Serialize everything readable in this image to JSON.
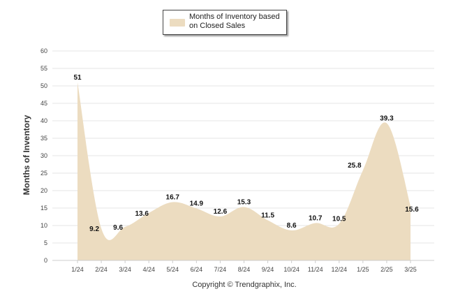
{
  "chart_data": {
    "type": "area",
    "categories": [
      "1/24",
      "2/24",
      "3/24",
      "4/24",
      "5/24",
      "6/24",
      "7/24",
      "8/24",
      "9/24",
      "10/24",
      "11/24",
      "12/24",
      "1/25",
      "2/25",
      "3/25"
    ],
    "series": [
      {
        "name": "Months of Inventory based on Closed Sales",
        "values": [
          51,
          9.2,
          9.6,
          13.6,
          16.7,
          14.9,
          12.6,
          15.3,
          11.5,
          8.6,
          10.7,
          10.5,
          25.8,
          39.3,
          15.6
        ],
        "color": "#ecdcc0"
      }
    ],
    "ylabel": "Months of Inventory",
    "xlabel": "",
    "ylim": [
      0,
      60
    ],
    "yticks": [
      0,
      5,
      10,
      15,
      20,
      25,
      30,
      35,
      40,
      45,
      50,
      55,
      60
    ],
    "grid": true,
    "legend_position": "top-center"
  },
  "legend": {
    "label": "Months of Inventory based on Closed Sales"
  },
  "footer": {
    "copyright": "Copyright © Trendgraphix, Inc."
  },
  "colors": {
    "area_fill": "#ecdcc0",
    "gridline": "#e6e6e6",
    "axis": "#cccccc",
    "text": "#333333"
  }
}
